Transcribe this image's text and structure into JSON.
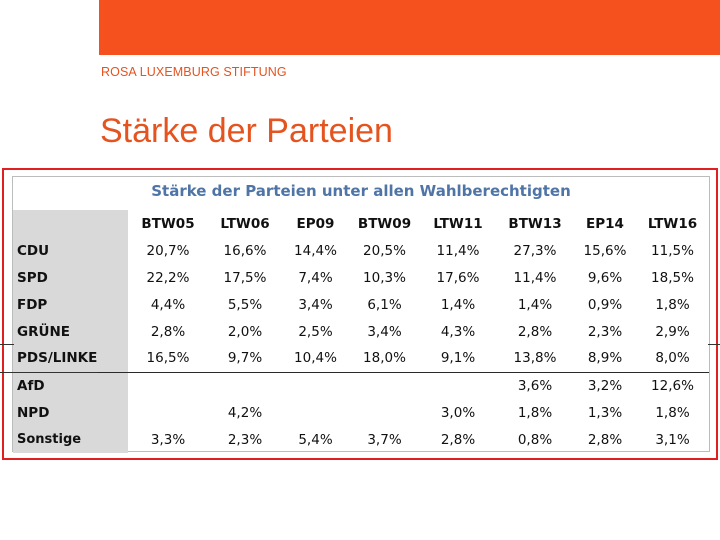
{
  "header": {
    "organization": "ROSA LUXEMBURG STIFTUNG",
    "title": "Stärke der Parteien"
  },
  "table": {
    "title": "Stärke der Parteien unter allen Wahlberechtigten",
    "columns": [
      "BTW05",
      "LTW06",
      "EP09",
      "BTW09",
      "LTW11",
      "BTW13",
      "EP14",
      "LTW16"
    ],
    "rows": [
      {
        "party": "CDU",
        "values": [
          "20,7%",
          "16,6%",
          "14,4%",
          "20,5%",
          "11,4%",
          "27,3%",
          "15,6%",
          "11,5%"
        ]
      },
      {
        "party": "SPD",
        "values": [
          "22,2%",
          "17,5%",
          "7,4%",
          "10,3%",
          "17,6%",
          "11,4%",
          "9,6%",
          "18,5%"
        ]
      },
      {
        "party": "FDP",
        "values": [
          "4,4%",
          "5,5%",
          "3,4%",
          "6,1%",
          "1,4%",
          "1,4%",
          "0,9%",
          "1,8%"
        ]
      },
      {
        "party": "GRÜNE",
        "values": [
          "2,8%",
          "2,0%",
          "2,5%",
          "3,4%",
          "4,3%",
          "2,8%",
          "2,3%",
          "2,9%"
        ]
      },
      {
        "party": "PDS/LINKE",
        "values": [
          "16,5%",
          "9,7%",
          "10,4%",
          "18,0%",
          "9,1%",
          "13,8%",
          "8,9%",
          "8,0%"
        ]
      },
      {
        "party": "AfD",
        "values": [
          "",
          "",
          "",
          "",
          "",
          "3,6%",
          "3,2%",
          "12,6%"
        ]
      },
      {
        "party": "NPD",
        "values": [
          "",
          "4,2%",
          "",
          "",
          "3,0%",
          "1,8%",
          "1,3%",
          "1,8%"
        ]
      },
      {
        "party": "Sonstige",
        "values": [
          "3,3%",
          "2,3%",
          "5,4%",
          "3,7%",
          "2,8%",
          "0,8%",
          "2,8%",
          "3,1%"
        ]
      }
    ]
  }
}
